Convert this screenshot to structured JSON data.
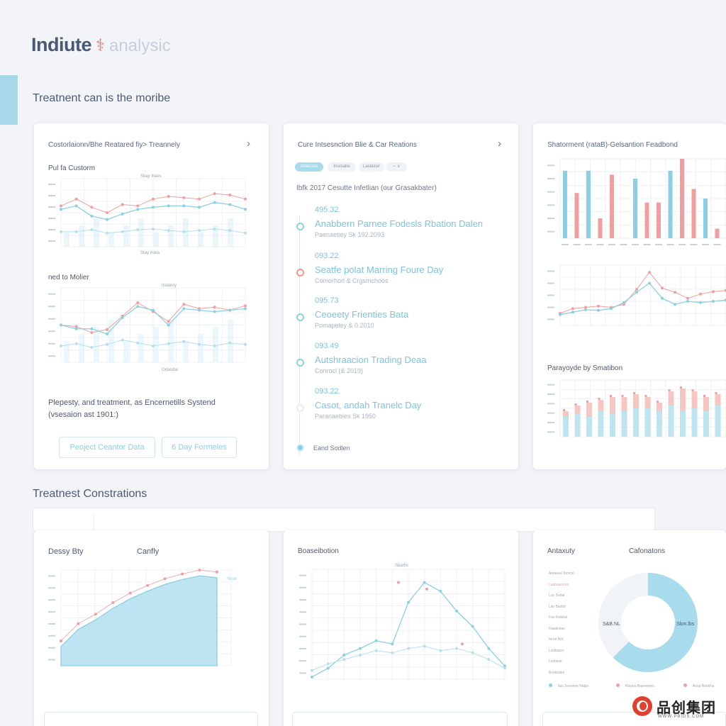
{
  "header": {
    "brand": "Indiute",
    "brand_mark": "⚕",
    "brand_suffix": "analysic"
  },
  "sections": {
    "top_title": "Treatnent can is the moribe",
    "bottom_title": "Treatnest Constrations"
  },
  "card1": {
    "title": "Costorlaionn/Bhe Reatared fiy> Treannely",
    "chart1_label": "Pul fa Custorm",
    "chart1_caption": "Sbay ibaes",
    "chart1_xcaption": "Stay iroea",
    "chart2_label": "ned to Molier",
    "chart2_caption": "Itsdatoy",
    "chart2_xcaption": "Ortaodie",
    "description": "Plepesty, and treatment, as Encernetills Systend",
    "description_sub": "(vsesaion ast 1901:)",
    "button1": "Peoject Ceantor Data",
    "button2": "6 Day Formeles",
    "colors": {
      "blue": "#8ccfe3",
      "red": "#ef9f9f"
    }
  },
  "card2": {
    "title": "Cure Intsesnction Blie & Car Reations",
    "pills": [
      "Inlaicuns",
      "Inursabe",
      "Laslaicer",
      "∽ ∨"
    ],
    "subtitle": "Ibfk 2017 Cesutte Infetlian (our Grasakbater)",
    "timeline": [
      {
        "num": "495.32",
        "title": "Anabbern Parnee Fodesls Rbation Dalen",
        "sub": "Paenaetiey Sk 192.2093"
      },
      {
        "num": "093.22",
        "title": "Seatfe polat Marring Foure Day",
        "sub": "Comorhorl & Crgsmchoos"
      },
      {
        "num": "095.73",
        "title": "Ceoeety Frienties Bata",
        "sub": "Pomapeley & 0.2010"
      },
      {
        "num": "093.49",
        "title": "Autshraacion Trading Deaa",
        "sub": "Conrocl (& 2019)"
      },
      {
        "num": "093.22",
        "title": "Casot, andah Tranelc Day",
        "sub": "Paranaebies Sk 1950"
      }
    ],
    "footer": "Eand Sodlen"
  },
  "card3": {
    "title": "Shatorment (rataB)-Gelsantion Feadbond",
    "chart3_label": "Parayoyde by Smatibon",
    "chart1": {
      "blue": [
        85,
        0,
        85,
        0,
        0,
        0,
        75,
        0,
        0,
        85,
        0,
        0,
        50,
        0
      ],
      "red": [
        0,
        57,
        0,
        25,
        80,
        0,
        0,
        45,
        45,
        0,
        100,
        62,
        0,
        12
      ]
    }
  },
  "card4": {
    "title": "Dessy Bty",
    "title2": "Canfly",
    "legend": "Sbuo",
    "chart_data": {
      "type": "area",
      "values": [
        20,
        38,
        48,
        60,
        70,
        78,
        85,
        90,
        94,
        92
      ]
    }
  },
  "card5": {
    "title": "Boaseibotion",
    "caption": "Sbarhs"
  },
  "card6": {
    "title": "Antaxuty",
    "title2": "Cafonatons",
    "donut_left": "S&B.NL",
    "donut_right": "Sbm.lbs",
    "list": [
      "Antaraul Tsorcel",
      "Lasbaacleos",
      "Luc Sobal",
      "Lav Bantol",
      "Fan Robbal",
      "Fasalceas",
      "Inroe Bot",
      "Lavibaurs",
      "Laxbtsie",
      "Ecobsatoi"
    ],
    "legend": [
      "Ilas Sosonon Nalps",
      "Rlayou Bapoutnes",
      "Ansp Roskfra"
    ]
  },
  "watermark": {
    "text": "品创集团",
    "url": "WWW.PBIDS.COM"
  }
}
